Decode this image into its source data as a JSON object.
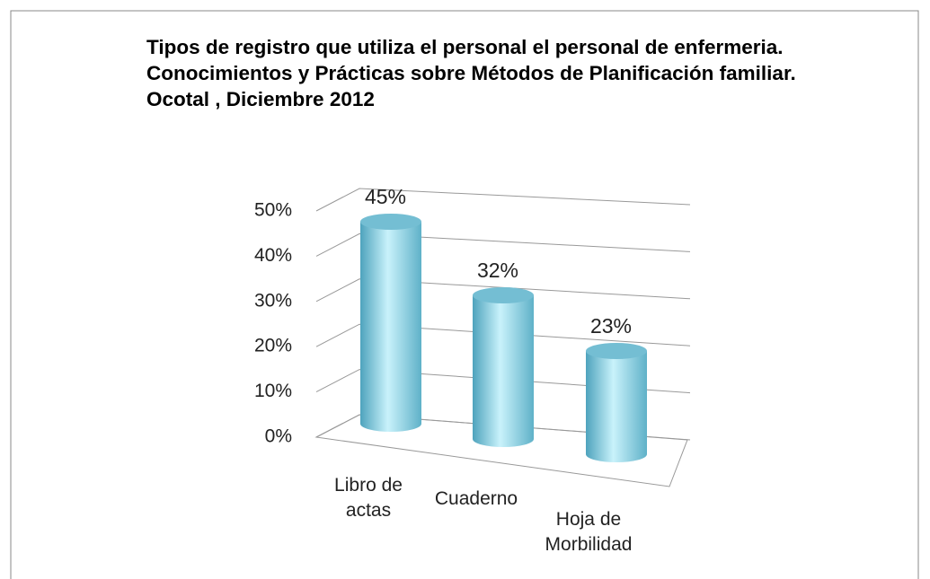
{
  "chart_data": {
    "type": "bar3d",
    "title": "Tipos de registro que utiliza el personal el personal de enfermeria.  Conocimientos  y Prácticas sobre  Métodos de Planificación familiar. Ocotal , Diciembre 2012",
    "categories": [
      "Libro de actas",
      "Cuaderno",
      "Hoja de Morbilidad"
    ],
    "values": [
      45,
      32,
      23
    ],
    "value_labels": [
      "45%",
      "32%",
      "23%"
    ],
    "color": "#8fd6ea",
    "ylim": [
      0,
      50
    ],
    "yticks": [
      {
        "value": 0,
        "label": "0%"
      },
      {
        "value": 10,
        "label": "10%"
      },
      {
        "value": 20,
        "label": "20%"
      },
      {
        "value": 30,
        "label": "30%"
      },
      {
        "value": 40,
        "label": "40%"
      },
      {
        "value": 50,
        "label": "50%"
      }
    ],
    "grid": true
  }
}
